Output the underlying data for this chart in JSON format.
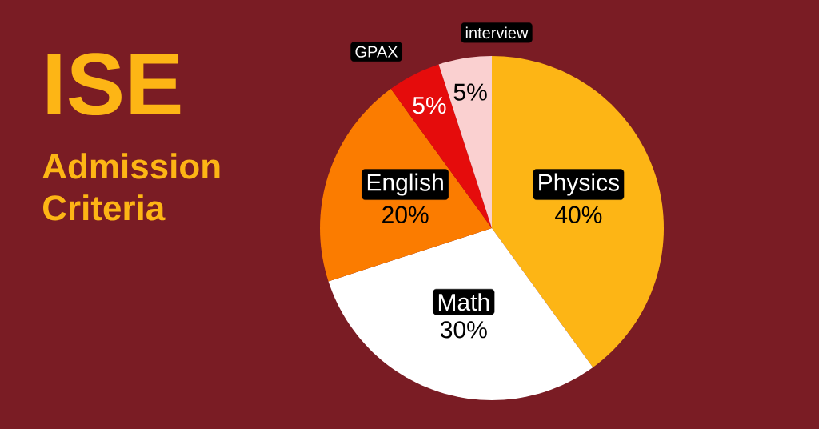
{
  "chart_data": {
    "type": "pie",
    "title": "ISE",
    "subtitle": "Admission Criteria",
    "categories": [
      "Physics",
      "Math",
      "English",
      "GPAX",
      "interview"
    ],
    "values": [
      40,
      30,
      20,
      5,
      5
    ],
    "colors": [
      "#fdb515",
      "#ffffff",
      "#fb7c00",
      "#e50c0c",
      "#fad0d0"
    ],
    "value_labels": [
      "40%",
      "30%",
      "20%",
      "5%",
      "5%"
    ]
  }
}
